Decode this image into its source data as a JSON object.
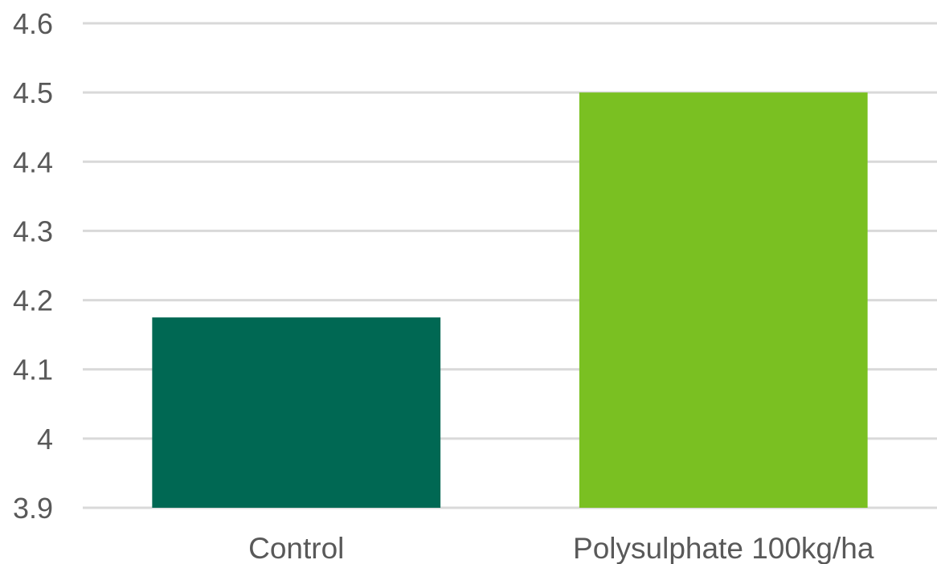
{
  "chart_data": {
    "type": "bar",
    "title": "",
    "xlabel": "",
    "ylabel": "",
    "categories": [
      "Control",
      "Polysulphate 100kg/ha"
    ],
    "values": [
      4.175,
      4.5
    ],
    "ylim": [
      3.9,
      4.6
    ],
    "yticks": [
      "3.9",
      "4",
      "4.1",
      "4.2",
      "4.3",
      "4.4",
      "4.5",
      "4.6"
    ],
    "grid": true,
    "legend": "none",
    "colors": [
      "#006853",
      "#7ac022"
    ],
    "gridline_color": "#d9d9d9",
    "text_color": "#595959"
  }
}
